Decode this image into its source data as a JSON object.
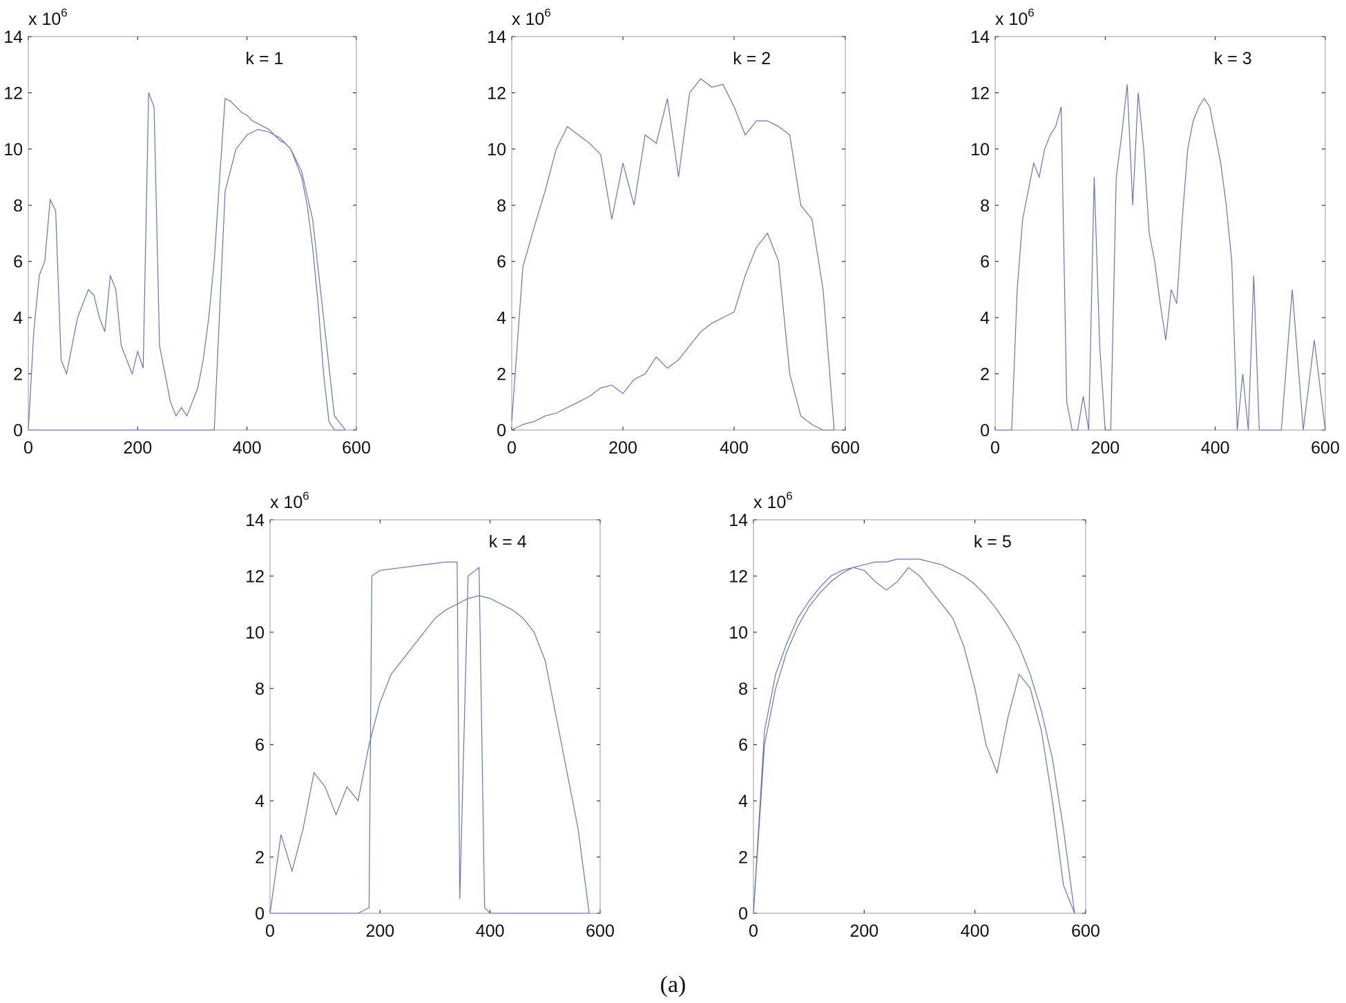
{
  "caption": "(a)",
  "colors": {
    "series": "#6670c8",
    "axis": "#111111",
    "frame": "#999999"
  },
  "chart_data": [
    {
      "type": "line",
      "annotation": "k = 1",
      "xlim": [
        0,
        600
      ],
      "ylim": [
        0,
        14000000
      ],
      "xticks": [
        "0",
        "200",
        "400",
        "600"
      ],
      "yticks": [
        "0",
        "2",
        "4",
        "6",
        "8",
        "10",
        "12",
        "14"
      ],
      "y_multiplier": "x 10^6",
      "grid": false,
      "series": [
        {
          "x": [
            0,
            10,
            20,
            30,
            40,
            50,
            60,
            70,
            80,
            90,
            100,
            110,
            120,
            130,
            140,
            150,
            160,
            170,
            180,
            190,
            200,
            210,
            220,
            230,
            240,
            250,
            260,
            270,
            280,
            290,
            300,
            310,
            320,
            330,
            340,
            350,
            360,
            370,
            380,
            390,
            400,
            410,
            420,
            430,
            440,
            450,
            460,
            470,
            480,
            490,
            500,
            510,
            520,
            530,
            540,
            550,
            560,
            570,
            580
          ],
          "y": [
            0,
            3.5,
            5.5,
            6.0,
            8.2,
            7.8,
            2.5,
            2.0,
            3.0,
            4.0,
            4.5,
            5.0,
            4.8,
            4.0,
            3.5,
            5.5,
            5.0,
            3.0,
            2.5,
            2.0,
            2.8,
            2.2,
            12.0,
            11.5,
            3.0,
            2.0,
            1.0,
            0.5,
            0.8,
            0.5,
            1.0,
            1.5,
            2.5,
            4.0,
            6.0,
            9.0,
            11.8,
            11.7,
            11.5,
            11.3,
            11.2,
            11.0,
            10.9,
            10.8,
            10.7,
            10.5,
            10.3,
            10.2,
            10.0,
            9.5,
            9.0,
            8.0,
            6.5,
            4.5,
            2.0,
            0.3,
            0.0,
            0.0,
            0.0
          ]
        },
        {
          "x": [
            0,
            20,
            40,
            60,
            80,
            100,
            120,
            140,
            160,
            180,
            200,
            220,
            240,
            260,
            280,
            300,
            320,
            340,
            360,
            380,
            400,
            420,
            440,
            460,
            480,
            500,
            520,
            540,
            560,
            580
          ],
          "y": [
            0,
            0,
            0,
            0,
            0,
            0,
            0,
            0,
            0,
            0,
            0,
            0,
            0,
            0,
            0,
            0,
            0,
            0,
            8.5,
            10.0,
            10.5,
            10.7,
            10.6,
            10.4,
            10.0,
            9.2,
            7.5,
            4.0,
            0.5,
            0.0
          ]
        }
      ]
    },
    {
      "type": "line",
      "annotation": "k = 2",
      "xlim": [
        0,
        600
      ],
      "ylim": [
        0,
        14000000
      ],
      "xticks": [
        "0",
        "200",
        "400",
        "600"
      ],
      "yticks": [
        "0",
        "2",
        "4",
        "6",
        "8",
        "10",
        "12",
        "14"
      ],
      "y_multiplier": "x 10^6",
      "grid": false,
      "series": [
        {
          "x": [
            0,
            20,
            40,
            60,
            80,
            100,
            120,
            140,
            160,
            180,
            200,
            220,
            240,
            260,
            280,
            300,
            320,
            340,
            360,
            380,
            400,
            420,
            440,
            460,
            480,
            500,
            520,
            540,
            560,
            580
          ],
          "y": [
            0.3,
            5.8,
            7.2,
            8.5,
            10.0,
            10.8,
            10.5,
            10.2,
            9.8,
            7.5,
            9.5,
            8.0,
            10.5,
            10.2,
            11.8,
            9.0,
            12.0,
            12.5,
            12.2,
            12.3,
            11.5,
            10.5,
            11.0,
            11.0,
            10.8,
            10.5,
            8.0,
            7.5,
            5.0,
            0.0
          ]
        },
        {
          "x": [
            0,
            20,
            40,
            60,
            80,
            100,
            120,
            140,
            160,
            180,
            200,
            220,
            240,
            260,
            280,
            300,
            320,
            340,
            360,
            380,
            400,
            420,
            440,
            460,
            480,
            500,
            520,
            540,
            560,
            580
          ],
          "y": [
            0,
            0.2,
            0.3,
            0.5,
            0.6,
            0.8,
            1.0,
            1.2,
            1.5,
            1.6,
            1.3,
            1.8,
            2.0,
            2.6,
            2.2,
            2.5,
            3.0,
            3.5,
            3.8,
            4.0,
            4.2,
            5.5,
            6.5,
            7.0,
            6.0,
            2.0,
            0.5,
            0.2,
            0.0,
            0.0
          ]
        }
      ]
    },
    {
      "type": "line",
      "annotation": "k = 3",
      "xlim": [
        0,
        600
      ],
      "ylim": [
        0,
        14000000
      ],
      "xticks": [
        "0",
        "200",
        "400",
        "600"
      ],
      "yticks": [
        "0",
        "2",
        "4",
        "6",
        "8",
        "10",
        "12",
        "14"
      ],
      "y_multiplier": "x 10^6",
      "grid": false,
      "series": [
        {
          "x": [
            0,
            20,
            30,
            40,
            50,
            60,
            70,
            80,
            90,
            100,
            110,
            120,
            130,
            140,
            150,
            160,
            170,
            180,
            190,
            200,
            210,
            220,
            230,
            240,
            250,
            260,
            270,
            280,
            290,
            300,
            310,
            320,
            330,
            340,
            350,
            360,
            370,
            380,
            390,
            400,
            410,
            420,
            430,
            440,
            450,
            460,
            470,
            480,
            500,
            520,
            540,
            560,
            580,
            600
          ],
          "y": [
            0,
            0,
            0,
            5.0,
            7.5,
            8.5,
            9.5,
            9.0,
            10.0,
            10.5,
            10.8,
            11.5,
            1.0,
            0.0,
            0.0,
            1.2,
            0.0,
            9.0,
            3.0,
            0.0,
            0.0,
            9.0,
            10.5,
            12.3,
            8.0,
            12.0,
            10.0,
            7.0,
            6.0,
            4.5,
            3.2,
            5.0,
            4.5,
            7.5,
            10.0,
            11.0,
            11.5,
            11.8,
            11.5,
            10.5,
            9.5,
            8.0,
            6.0,
            0.0,
            2.0,
            0.0,
            5.5,
            0.0,
            0.0,
            0.0,
            5.0,
            0.0,
            3.2,
            0.0
          ]
        }
      ]
    },
    {
      "type": "line",
      "annotation": "k = 4",
      "xlim": [
        0,
        600
      ],
      "ylim": [
        0,
        14000000
      ],
      "xticks": [
        "0",
        "200",
        "400",
        "600"
      ],
      "yticks": [
        "0",
        "2",
        "4",
        "6",
        "8",
        "10",
        "12",
        "14"
      ],
      "y_multiplier": "x 10^6",
      "grid": false,
      "series": [
        {
          "x": [
            0,
            20,
            40,
            60,
            80,
            100,
            120,
            140,
            160,
            180,
            200,
            220,
            240,
            260,
            280,
            300,
            320,
            340,
            360,
            380,
            400,
            420,
            440,
            460,
            480,
            500,
            520,
            540,
            560,
            580
          ],
          "y": [
            0,
            2.8,
            1.5,
            3.0,
            5.0,
            4.5,
            3.5,
            4.5,
            4.0,
            6.0,
            7.5,
            8.5,
            9.0,
            9.5,
            10.0,
            10.5,
            10.8,
            11.0,
            11.2,
            11.3,
            11.2,
            11.0,
            10.8,
            10.5,
            10.0,
            9.0,
            7.0,
            5.0,
            3.0,
            0.0
          ]
        },
        {
          "x": [
            0,
            160,
            180,
            185,
            200,
            240,
            280,
            320,
            340,
            345,
            360,
            380,
            390,
            400,
            420,
            440,
            460,
            480,
            500,
            580
          ],
          "y": [
            0,
            0,
            0.2,
            12.0,
            12.2,
            12.3,
            12.4,
            12.5,
            12.5,
            0.5,
            12.0,
            12.3,
            0.2,
            0.0,
            0.0,
            0.0,
            0.0,
            0.0,
            0.0,
            0.0
          ]
        }
      ]
    },
    {
      "type": "line",
      "annotation": "k = 5",
      "xlim": [
        0,
        600
      ],
      "ylim": [
        0,
        14000000
      ],
      "xticks": [
        "0",
        "200",
        "400",
        "600"
      ],
      "yticks": [
        "0",
        "2",
        "4",
        "6",
        "8",
        "10",
        "12",
        "14"
      ],
      "y_multiplier": "x 10^6",
      "grid": false,
      "series": [
        {
          "x": [
            0,
            20,
            40,
            60,
            80,
            100,
            120,
            140,
            160,
            180,
            200,
            220,
            240,
            260,
            280,
            300,
            320,
            340,
            360,
            380,
            400,
            420,
            440,
            460,
            480,
            500,
            520,
            540,
            560,
            580
          ],
          "y": [
            0,
            6.0,
            8.0,
            9.3,
            10.2,
            10.9,
            11.4,
            11.8,
            12.1,
            12.3,
            12.4,
            12.5,
            12.5,
            12.6,
            12.6,
            12.6,
            12.5,
            12.4,
            12.2,
            12.0,
            11.7,
            11.3,
            10.8,
            10.2,
            9.5,
            8.5,
            7.2,
            5.5,
            3.0,
            0.0
          ]
        },
        {
          "x": [
            0,
            20,
            40,
            60,
            80,
            100,
            120,
            140,
            160,
            180,
            200,
            220,
            240,
            260,
            280,
            300,
            320,
            340,
            360,
            380,
            400,
            420,
            440,
            460,
            480,
            500,
            520,
            540,
            560,
            580
          ],
          "y": [
            0,
            6.5,
            8.5,
            9.6,
            10.5,
            11.1,
            11.6,
            12.0,
            12.2,
            12.3,
            12.2,
            11.8,
            11.5,
            11.8,
            12.3,
            12.0,
            11.5,
            11.0,
            10.5,
            9.5,
            8.0,
            6.0,
            5.0,
            7.0,
            8.5,
            8.0,
            6.5,
            4.0,
            1.0,
            0.0
          ]
        }
      ]
    }
  ]
}
